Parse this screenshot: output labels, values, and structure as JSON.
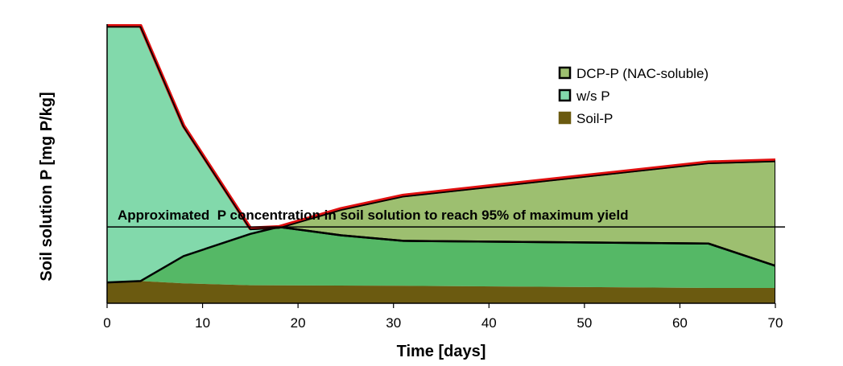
{
  "chart_data": {
    "type": "area",
    "stacked": true,
    "title": "",
    "xlabel": "Time [days]",
    "ylabel": "Soil solution P [mg P/kg]",
    "xlim": [
      0,
      70
    ],
    "ylim": [
      0,
      100
    ],
    "xticks": [
      0,
      10,
      20,
      30,
      40,
      50,
      60,
      70
    ],
    "show_yticks": false,
    "grid": false,
    "legend_position": "top-right",
    "threshold": {
      "y": 27.5,
      "label": "Approximated  P concentration in soil solution to reach 95% of maximum yield"
    },
    "series": [
      {
        "name": "Soil-P",
        "color": "#6b5a10",
        "points": [
          [
            0,
            7.5
          ],
          [
            3.5,
            8
          ],
          [
            8,
            7.2
          ],
          [
            15,
            6.5
          ],
          [
            31,
            6.3
          ],
          [
            63,
            5.5
          ],
          [
            70,
            5.5
          ]
        ]
      },
      {
        "name": "",
        "color": "#55b866",
        "points": [
          [
            0,
            7.5
          ],
          [
            3.5,
            8
          ],
          [
            8,
            17
          ],
          [
            15,
            25
          ],
          [
            18,
            27.5
          ],
          [
            24.5,
            24.5
          ],
          [
            31,
            22.5
          ],
          [
            63,
            21.5
          ],
          [
            70,
            13.5
          ]
        ]
      },
      {
        "name": "w/s P",
        "color": "#82d9ab",
        "points": [
          [
            0,
            100
          ],
          [
            3.5,
            100
          ],
          [
            8,
            64
          ],
          [
            15,
            27
          ],
          [
            18,
            27.5
          ],
          [
            24.5,
            24.5
          ],
          [
            31,
            22.5
          ],
          [
            63,
            21.5
          ],
          [
            70,
            13.5
          ]
        ]
      },
      {
        "name": "DCP-P  (NAC-soluble)",
        "color": "#9dbf70",
        "points": [
          [
            0,
            100
          ],
          [
            3.5,
            100
          ],
          [
            8,
            64
          ],
          [
            15,
            27
          ],
          [
            18,
            27.5
          ],
          [
            24.5,
            34
          ],
          [
            31,
            38.8
          ],
          [
            63,
            50.8
          ],
          [
            70,
            51.5
          ]
        ]
      }
    ],
    "legend": [
      {
        "label": "DCP-P  (NAC-soluble)",
        "color": "#9dbf70",
        "border": "#000000"
      },
      {
        "label": "w/s P",
        "color": "#82d9ab",
        "border": "#000000"
      },
      {
        "label": "Soil-P",
        "color": "#6b5a10",
        "border": "#6b5a10"
      }
    ],
    "colors": {
      "top_edge": "#e01010",
      "boundary": "#000000"
    }
  }
}
